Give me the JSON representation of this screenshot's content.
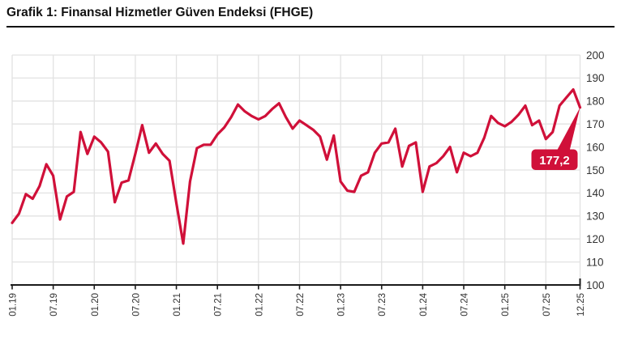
{
  "page": {
    "title": "Grafik 1: Finansal Hizmetler Güven Endeksi (FHGE)"
  },
  "chart_data": {
    "type": "line",
    "title": "Grafik 1: Finansal Hizmetler Güven Endeksi (FHGE)",
    "series_name": "FHGE",
    "frequency": "monthly",
    "x_start": "01.19",
    "x_end": "12.25",
    "values": [
      127,
      131,
      139.5,
      137.5,
      143,
      152.5,
      147.5,
      128.5,
      138.5,
      140.5,
      166.5,
      157,
      164.5,
      162,
      158,
      136,
      144.5,
      145.5,
      157,
      169.5,
      157.5,
      161.5,
      157,
      154,
      135.5,
      118,
      145,
      159.5,
      161,
      161,
      165.5,
      168.5,
      173,
      178.5,
      175.5,
      173.5,
      172,
      173.5,
      176.5,
      179,
      173,
      168,
      171.5,
      169.5,
      167.5,
      164.5,
      154.5,
      165,
      145,
      141,
      140.5,
      147.5,
      149,
      157.5,
      161.5,
      162,
      168,
      151.5,
      160.5,
      162,
      140.5,
      151.5,
      153,
      156,
      160,
      149,
      157.5,
      156,
      157.5,
      164,
      173.5,
      170.5,
      169,
      171,
      174,
      178,
      169.5,
      171.5,
      163.5,
      166.5,
      178,
      181.5,
      185,
      177.2
    ],
    "last_value": 177.2,
    "last_value_label": "177,2",
    "x_tick_indices": [
      0,
      6,
      12,
      18,
      24,
      30,
      36,
      42,
      48,
      54,
      60,
      66,
      72,
      78,
      83
    ],
    "x_tick_labels": [
      "01.19",
      "07.19",
      "01.20",
      "07.20",
      "01.21",
      "07.21",
      "01.22",
      "07.22",
      "01.23",
      "07.23",
      "01.24",
      "07.24",
      "01.25",
      "07.25",
      "12.25"
    ],
    "ylim": [
      100,
      200
    ],
    "y_tick_step": 10,
    "y_tick_labels": [
      "100",
      "110",
      "120",
      "130",
      "140",
      "150",
      "160",
      "170",
      "180",
      "190",
      "200"
    ],
    "grid": true,
    "legend": "none",
    "y_axis_side": "right",
    "colors": {
      "line": "#d01039",
      "grid": "#e2e2e2",
      "axis": "#1a1a1a",
      "tick_text": "#333333",
      "callout_bg": "#d01039",
      "callout_text": "#ffffff"
    }
  }
}
